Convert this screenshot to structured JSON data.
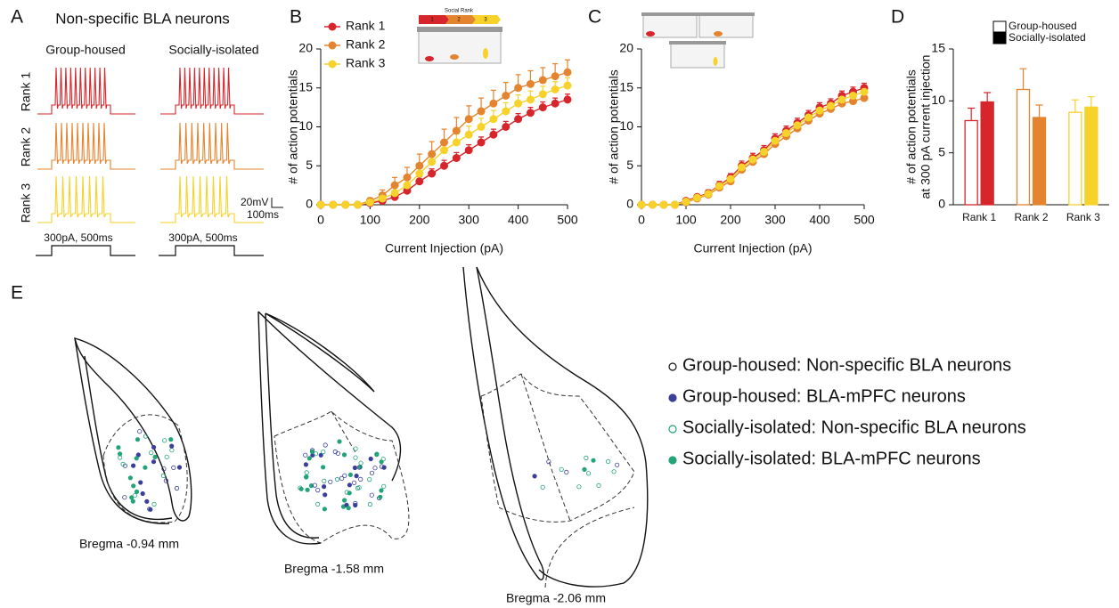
{
  "panel_a": {
    "label": "A",
    "title": "Non-specific BLA neurons",
    "columns": [
      "Group-housed",
      "Socially-isolated"
    ],
    "rows": [
      "Rank 1",
      "Rank 2",
      "Rank 3"
    ],
    "scale_voltage": "20mV",
    "scale_time": "100ms",
    "stimulus": [
      "300pA, 500ms",
      "300pA, 500ms"
    ]
  },
  "chart_data": [
    {
      "type": "line",
      "panel": "B",
      "xlabel": "Current Injection (pA)",
      "ylabel": [
        "# of action potentials"
      ],
      "inset_text": "Social Rank",
      "inset_ranks": [
        "1",
        "2",
        "3"
      ],
      "x": [
        0,
        25,
        50,
        75,
        100,
        125,
        150,
        175,
        200,
        225,
        250,
        275,
        300,
        325,
        350,
        375,
        400,
        425,
        450,
        475,
        500
      ],
      "series": [
        {
          "name": "Rank 1",
          "color": "#d7262b",
          "values": [
            0,
            0,
            0,
            0,
            0.2,
            0.5,
            1,
            1.8,
            3,
            4,
            5,
            6,
            7,
            8,
            9,
            10,
            11,
            11.8,
            12.5,
            13,
            13.5
          ],
          "errors": [
            0,
            0,
            0,
            0,
            0.2,
            0.3,
            0.4,
            0.5,
            0.6,
            0.6,
            0.7,
            0.7,
            0.7,
            0.7,
            0.7,
            0.7,
            0.7,
            0.7,
            0.7,
            0.7,
            0.7
          ]
        },
        {
          "name": "Rank 2",
          "color": "#e5842e",
          "values": [
            0,
            0,
            0,
            0,
            0.5,
            1.2,
            2.5,
            3.5,
            5,
            6.5,
            8,
            9.5,
            11,
            12,
            13,
            14,
            15,
            15.5,
            16,
            16.5,
            17
          ],
          "errors": [
            0,
            0,
            0,
            0,
            0.4,
            0.7,
            1,
            1.3,
            1.5,
            1.6,
            1.7,
            1.7,
            1.7,
            1.7,
            1.7,
            1.7,
            1.7,
            1.7,
            1.6,
            1.6,
            1.6
          ]
        },
        {
          "name": "Rank 3",
          "color": "#f6d22a",
          "values": [
            0,
            0,
            0,
            0,
            0.3,
            0.8,
            1.5,
            2.5,
            4,
            5.5,
            7,
            8,
            9,
            10,
            11,
            12,
            13,
            13.5,
            14.2,
            14.8,
            15.3
          ],
          "errors": [
            0,
            0,
            0,
            0,
            0.3,
            0.5,
            0.7,
            0.9,
            1,
            1.1,
            1.1,
            1.1,
            1.1,
            1.1,
            1.1,
            1.1,
            1.1,
            1.1,
            1,
            1,
            1
          ]
        }
      ],
      "xlim": [
        0,
        500
      ],
      "xticks": [
        0,
        100,
        200,
        300,
        400,
        500
      ],
      "ylim": [
        0,
        20
      ],
      "yticks": [
        0,
        5,
        10,
        15,
        20
      ],
      "legend": "top-left"
    },
    {
      "type": "line",
      "panel": "C",
      "xlabel": "Current Injection (pA)",
      "ylabel": [
        "# of action potentials"
      ],
      "x": [
        0,
        25,
        50,
        75,
        100,
        125,
        150,
        175,
        200,
        225,
        250,
        275,
        300,
        325,
        350,
        375,
        400,
        425,
        450,
        475,
        500
      ],
      "series": [
        {
          "name": "Rank 1",
          "color": "#d7262b",
          "values": [
            0,
            0,
            0,
            0,
            0.5,
            1,
            1.5,
            2.5,
            3.5,
            5,
            6,
            7,
            8.5,
            9.5,
            10.5,
            11.5,
            12.5,
            13,
            14,
            14.5,
            15
          ],
          "errors": [
            0,
            0,
            0,
            0,
            0.2,
            0.3,
            0.4,
            0.5,
            0.5,
            0.6,
            0.6,
            0.6,
            0.6,
            0.6,
            0.6,
            0.6,
            0.6,
            0.6,
            0.6,
            0.6,
            0.6
          ]
        },
        {
          "name": "Rank 2",
          "color": "#e5842e",
          "values": [
            0,
            0,
            0,
            0,
            0.3,
            0.8,
            1.3,
            2.2,
            3,
            4.5,
            5.5,
            6.5,
            7.8,
            8.8,
            9.8,
            10.8,
            11.7,
            12.3,
            13,
            13.3,
            13.7
          ],
          "errors": [
            0,
            0,
            0,
            0,
            0.2,
            0.3,
            0.4,
            0.4,
            0.5,
            0.5,
            0.5,
            0.5,
            0.5,
            0.5,
            0.5,
            0.5,
            0.5,
            0.5,
            0.5,
            0.5,
            0.5
          ]
        },
        {
          "name": "Rank 3",
          "color": "#f6d22a",
          "values": [
            0,
            0,
            0,
            0,
            0.4,
            0.9,
            1.4,
            2.4,
            3.3,
            4.8,
            5.8,
            6.8,
            8.2,
            9.2,
            10.2,
            11.2,
            12.1,
            12.7,
            13.5,
            14,
            14.5
          ],
          "errors": [
            0,
            0,
            0,
            0,
            0.2,
            0.3,
            0.4,
            0.5,
            0.5,
            0.6,
            0.6,
            0.6,
            0.6,
            0.6,
            0.6,
            0.6,
            0.6,
            0.6,
            0.6,
            0.6,
            0.6
          ]
        }
      ],
      "xlim": [
        0,
        500
      ],
      "xticks": [
        0,
        100,
        200,
        300,
        400,
        500
      ],
      "ylim": [
        0,
        20
      ],
      "yticks": [
        0,
        5,
        10,
        15,
        20
      ]
    },
    {
      "type": "bar",
      "panel": "D",
      "ylabel": [
        "# of action potentials",
        "at 300 pA current injection"
      ],
      "categories": [
        "Rank 1",
        "Rank 2",
        "Rank 3"
      ],
      "category_colors": [
        "#d7262b",
        "#e5842e",
        "#f6d22a"
      ],
      "series": [
        {
          "name": "Group-housed",
          "color": "#ffffff",
          "values": [
            8.1,
            11.1,
            8.9
          ],
          "errors": [
            1.2,
            2,
            1.2
          ]
        },
        {
          "name": "Socially-isolated",
          "color": "#000000",
          "values": [
            9.9,
            8.4,
            9.4
          ],
          "errors": [
            0.9,
            1.2,
            1
          ]
        }
      ],
      "ylim": [
        0,
        15
      ],
      "yticks": [
        0,
        5,
        10,
        15
      ],
      "legend": "top-right"
    }
  ],
  "panel_e": {
    "label": "E",
    "legend": [
      "Group-housed: Non-specific BLA neurons",
      "Group-housed: BLA-mPFC neurons",
      "Socially-isolated: Non-specific BLA neurons",
      "Socially-isolated: BLA-mPFC neurons"
    ],
    "sections": [
      "Bregma -0.94 mm",
      "Bregma -1.58 mm",
      "Bregma -2.06 mm"
    ]
  }
}
